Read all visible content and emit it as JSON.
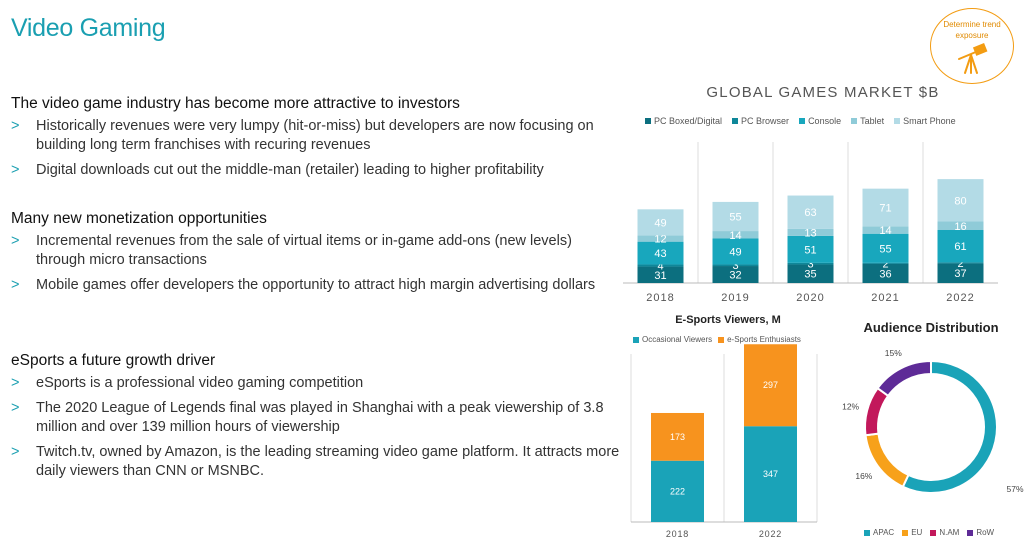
{
  "slide": {
    "title": "Video Gaming",
    "badge_text": "Determine trend exposure"
  },
  "sections": [
    {
      "heading": "The video game industry has become more attractive to investors",
      "bullets": [
        "Historically revenues were very lumpy (hit-or-miss) but developers are now focusing on building long term franchises with recuring revenues",
        "Digital downloads cut out the middle-man (retailer) leading to higher profitability"
      ]
    },
    {
      "heading": "Many new monetization opportunities",
      "bullets": [
        "Incremental revenues from the sale of virtual items or in-game add-ons (new levels) through micro transactions",
        "Mobile games offer developers the opportunity to attract high margin advertising dollars"
      ]
    },
    {
      "heading": "eSports a future growth driver",
      "bullets": [
        "eSports is a professional video gaming competition",
        "The 2020 League of Legends final was played in Shanghai with a peak viewership of 3.8 million and over 139 million hours of viewership",
        "Twitch.tv, owned by Amazon, is the leading streaming video game platform. It attracts more daily viewers than CNN or MSNBC."
      ]
    }
  ],
  "bullet_marker": ">",
  "chart_data": [
    {
      "type": "bar",
      "stacked": true,
      "title": "GLOBAL GAMES MARKET $B",
      "categories": [
        "2018",
        "2019",
        "2020",
        "2021",
        "2022"
      ],
      "series": [
        {
          "name": "PC Boxed/Digital",
          "color": "#0c6f7f",
          "values": [
            31,
            32,
            35,
            36,
            37
          ]
        },
        {
          "name": "PC Browser",
          "color": "#0e8799",
          "values": [
            4,
            3,
            3,
            2,
            2
          ]
        },
        {
          "name": "Console",
          "color": "#18a7bd",
          "values": [
            43,
            49,
            51,
            55,
            61
          ]
        },
        {
          "name": "Tablet",
          "color": "#8fcbd8",
          "values": [
            12,
            14,
            13,
            14,
            16
          ]
        },
        {
          "name": "Smart Phone",
          "color": "#b3dbe6",
          "values": [
            49,
            55,
            63,
            71,
            80
          ]
        }
      ],
      "legend": "top",
      "grid": "vertical"
    },
    {
      "type": "bar",
      "stacked": true,
      "title": "E-Sports Viewers, M",
      "categories": [
        "2018",
        "2022"
      ],
      "series": [
        {
          "name": "Occasional Viewers",
          "color": "#1aa3b8",
          "values": [
            222,
            347
          ]
        },
        {
          "name": "e-Sports Enthusiasts",
          "color": "#f7931e",
          "values": [
            173,
            297
          ]
        }
      ],
      "legend": "top"
    },
    {
      "type": "pie",
      "donut": true,
      "title": "Audience Distribution",
      "categories": [
        "APAC",
        "EU",
        "N.AM",
        "RoW"
      ],
      "values": [
        57,
        16,
        12,
        15
      ],
      "labels": [
        "57%",
        "16%",
        "12%",
        "15%"
      ],
      "colors": [
        "#1aa3b8",
        "#f7a11a",
        "#c2185b",
        "#5e2b97"
      ],
      "legend": "bottom"
    }
  ]
}
